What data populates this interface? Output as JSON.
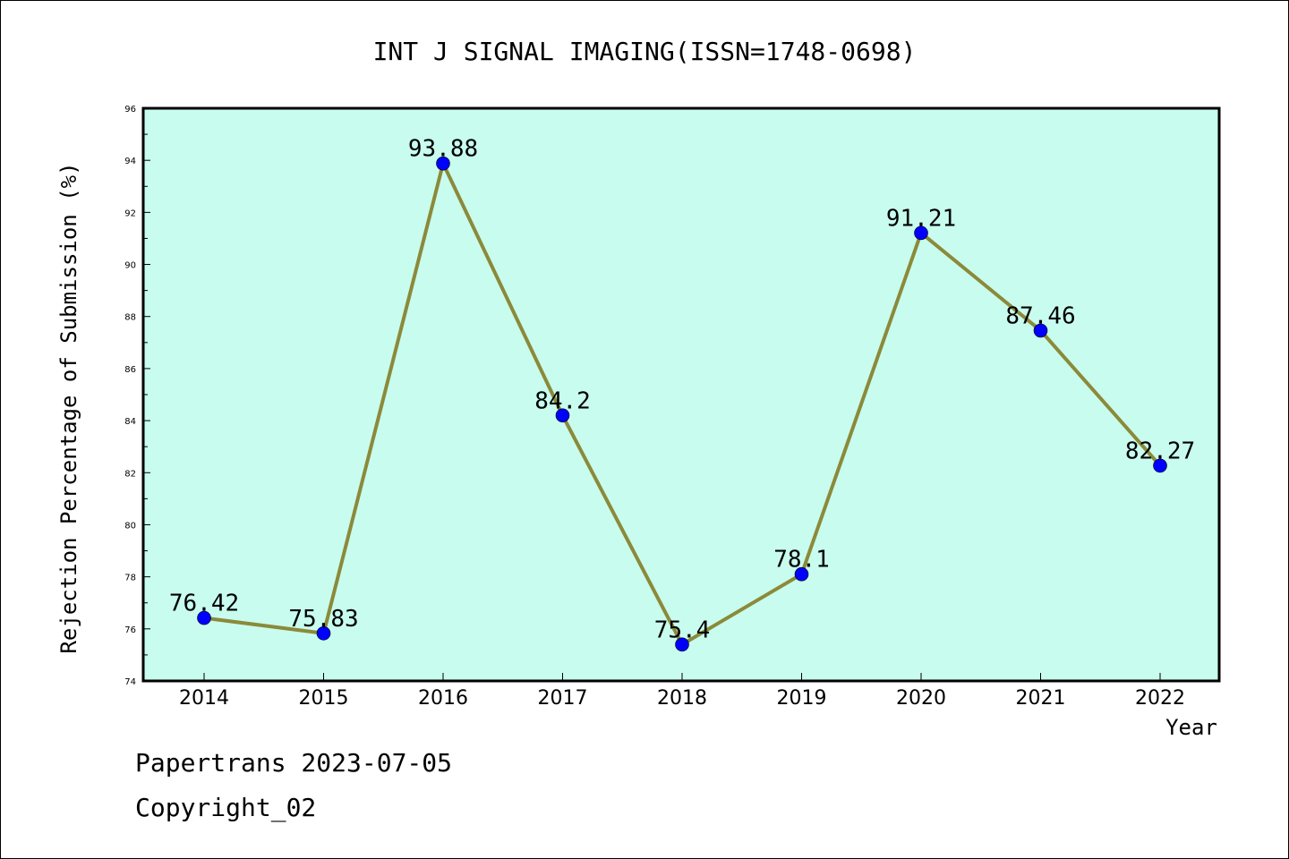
{
  "chart_data": {
    "type": "line",
    "title": "INT J SIGNAL IMAGING(ISSN=1748-0698)",
    "xlabel": "Year",
    "ylabel": "Rejection Percentage of Submission (%)",
    "categories": [
      "2014",
      "2015",
      "2016",
      "2017",
      "2018",
      "2019",
      "2020",
      "2021",
      "2022"
    ],
    "series": [
      {
        "values": [
          76.42,
          75.83,
          93.88,
          84.2,
          75.4,
          78.1,
          91.21,
          87.46,
          82.27
        ],
        "labels": [
          "76.42",
          "75.83",
          "93.88",
          "84.2",
          "75.4",
          "78.1",
          "91.21",
          "87.46",
          "82.27"
        ]
      }
    ],
    "ylim": [
      74,
      96
    ],
    "yticks": [
      "74",
      "76",
      "78",
      "80",
      "82",
      "84",
      "86",
      "88",
      "90",
      "92",
      "94",
      "96"
    ],
    "grid": false,
    "legend": "none",
    "colors": {
      "plot_background": "#c8fcee",
      "line": "#8b8a3a",
      "marker": "#0000ff"
    }
  },
  "footer": {
    "line1": "Papertrans 2023-07-05",
    "line2": "Copyright_02"
  }
}
